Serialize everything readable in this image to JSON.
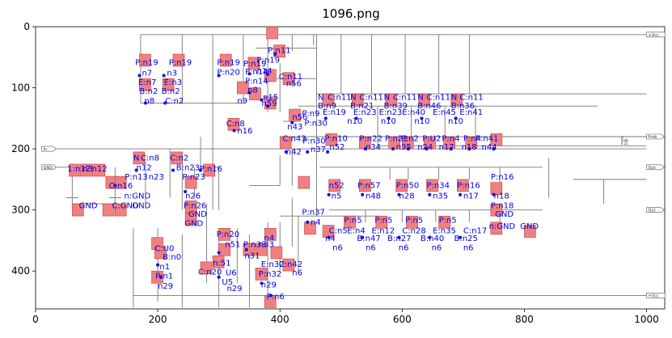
{
  "figure": {
    "title": "1096.png",
    "x_ticks": [
      "0",
      "200",
      "400",
      "600",
      "800",
      "1000"
    ],
    "y_ticks": [
      "0",
      "100",
      "200",
      "300",
      "400"
    ]
  },
  "ports": {
    "vcc": "+Vcc",
    "vcc2": "+Vcc",
    "in": "In",
    "gnd": "GND",
    "probe": "Prob",
    "out": "Out",
    "out2": "Out",
    "vee": "-Vee",
    "sub_title": "LI",
    "sub_l1": "Subt",
    "sub_l2": "0.22"
  },
  "labels": [
    {
      "t": "P:n19",
      "x": 163,
      "y": 63
    },
    {
      "t": "P:n19",
      "x": 218,
      "y": 63
    },
    {
      "t": "P:n19",
      "x": 297,
      "y": 63
    },
    {
      "t": "P:n19",
      "x": 340,
      "y": 65
    },
    {
      "t": "P:n11",
      "x": 380,
      "y": 43
    },
    {
      "t": "P:n19",
      "x": 362,
      "y": 59
    },
    {
      "t": "n7",
      "x": 174,
      "y": 80
    },
    {
      "t": "n3",
      "x": 215,
      "y": 80
    },
    {
      "t": "P:n20",
      "x": 297,
      "y": 79
    },
    {
      "t": "P:n14",
      "x": 343,
      "y": 78
    },
    {
      "t": "n14",
      "x": 362,
      "y": 77
    },
    {
      "t": "E:n7",
      "x": 168,
      "y": 95
    },
    {
      "t": "E:n3",
      "x": 210,
      "y": 95
    },
    {
      "t": "P:n14",
      "x": 343,
      "y": 93
    },
    {
      "t": "C:n11",
      "x": 398,
      "y": 86
    },
    {
      "t": "n56",
      "x": 410,
      "y": 97
    },
    {
      "t": "B:n2",
      "x": 170,
      "y": 110
    },
    {
      "t": "B:n2",
      "x": 206,
      "y": 110
    },
    {
      "t": "n8",
      "x": 347,
      "y": 108
    },
    {
      "t": "n15",
      "x": 372,
      "y": 120
    },
    {
      "t": "n8",
      "x": 178,
      "y": 126
    },
    {
      "t": "C:n2",
      "x": 212,
      "y": 126
    },
    {
      "t": "n9",
      "x": 330,
      "y": 126
    },
    {
      "t": "N",
      "x": 462,
      "y": 120
    },
    {
      "t": "C:n11",
      "x": 478,
      "y": 120
    },
    {
      "t": "N",
      "x": 515,
      "y": 120
    },
    {
      "t": "C:n11",
      "x": 530,
      "y": 120
    },
    {
      "t": "N",
      "x": 570,
      "y": 120
    },
    {
      "t": "C:n11",
      "x": 585,
      "y": 120
    },
    {
      "t": "N",
      "x": 625,
      "y": 120
    },
    {
      "t": "C:n11",
      "x": 640,
      "y": 120
    },
    {
      "t": "N",
      "x": 680,
      "y": 120
    },
    {
      "t": "C:n11",
      "x": 694,
      "y": 120
    },
    {
      "t": "B:n9",
      "x": 462,
      "y": 134
    },
    {
      "t": "B:n21",
      "x": 515,
      "y": 134
    },
    {
      "t": "B:n39",
      "x": 570,
      "y": 134
    },
    {
      "t": "B:n46",
      "x": 625,
      "y": 134
    },
    {
      "t": "B:n36",
      "x": 680,
      "y": 134
    },
    {
      "t": "P:n9",
      "x": 436,
      "y": 146
    },
    {
      "t": "E:n19",
      "x": 470,
      "y": 144
    },
    {
      "t": "E:n23",
      "x": 520,
      "y": 144
    },
    {
      "t": "E:n23",
      "x": 562,
      "y": 144
    },
    {
      "t": "E:n40",
      "x": 600,
      "y": 144
    },
    {
      "t": "E:n45",
      "x": 650,
      "y": 144
    },
    {
      "t": "E:n41",
      "x": 694,
      "y": 144
    },
    {
      "t": "n59",
      "x": 370,
      "y": 130
    },
    {
      "t": "n56",
      "x": 420,
      "y": 152
    },
    {
      "t": "P:n30",
      "x": 440,
      "y": 162
    },
    {
      "t": "n43",
      "x": 412,
      "y": 168
    },
    {
      "t": "n10",
      "x": 510,
      "y": 159
    },
    {
      "t": "n10",
      "x": 565,
      "y": 159
    },
    {
      "t": "n10",
      "x": 620,
      "y": 159
    },
    {
      "t": "n10",
      "x": 675,
      "y": 159
    },
    {
      "t": "C:n8",
      "x": 312,
      "y": 163
    },
    {
      "t": "n16",
      "x": 330,
      "y": 175
    },
    {
      "t": "C:n43",
      "x": 404,
      "y": 187
    },
    {
      "t": "P:n10",
      "x": 473,
      "y": 187
    },
    {
      "t": "P:n30",
      "x": 437,
      "y": 191
    },
    {
      "t": "n42",
      "x": 410,
      "y": 209
    },
    {
      "t": "n37",
      "x": 450,
      "y": 205
    },
    {
      "t": "n52",
      "x": 481,
      "y": 201
    },
    {
      "t": "P:n22",
      "x": 530,
      "y": 187
    },
    {
      "t": "P:n22",
      "x": 572,
      "y": 187
    },
    {
      "t": "P:n2",
      "x": 598,
      "y": 187
    },
    {
      "t": "P:U2",
      "x": 633,
      "y": 187
    },
    {
      "t": "P:n4",
      "x": 665,
      "y": 187
    },
    {
      "t": "P:n4",
      "x": 700,
      "y": 187
    },
    {
      "t": "P:n41",
      "x": 720,
      "y": 187
    },
    {
      "t": "n34",
      "x": 540,
      "y": 201
    },
    {
      "t": "n35",
      "x": 590,
      "y": 201
    },
    {
      "t": "n24",
      "x": 625,
      "y": 201
    },
    {
      "t": "n17",
      "x": 660,
      "y": 201
    },
    {
      "t": "n18",
      "x": 697,
      "y": 201
    },
    {
      "t": "n44",
      "x": 730,
      "y": 201
    },
    {
      "t": "N",
      "x": 160,
      "y": 219
    },
    {
      "t": "C:n8",
      "x": 172,
      "y": 219
    },
    {
      "t": "C:n2",
      "x": 220,
      "y": 219
    },
    {
      "t": "1:n12",
      "x": 52,
      "y": 237
    },
    {
      "t": "n3",
      "x": 77,
      "y": 237
    },
    {
      "t": "n12",
      "x": 92,
      "y": 237
    },
    {
      "t": "n12",
      "x": 165,
      "y": 235
    },
    {
      "t": "B:n23",
      "x": 230,
      "y": 235
    },
    {
      "t": "P:n16",
      "x": 268,
      "y": 237
    },
    {
      "t": "P:n13",
      "x": 146,
      "y": 250
    },
    {
      "t": "n23",
      "x": 185,
      "y": 250
    },
    {
      "t": "P:n23",
      "x": 240,
      "y": 250
    },
    {
      "t": "P:n16",
      "x": 745,
      "y": 250
    },
    {
      "t": "C:n16",
      "x": 120,
      "y": 265
    },
    {
      "t": "n52",
      "x": 480,
      "y": 264
    },
    {
      "t": "P:n57",
      "x": 527,
      "y": 264
    },
    {
      "t": "P:n50",
      "x": 590,
      "y": 264
    },
    {
      "t": "P:n34",
      "x": 640,
      "y": 264
    },
    {
      "t": "P:n16",
      "x": 690,
      "y": 264
    },
    {
      "t": "n26",
      "x": 245,
      "y": 281
    },
    {
      "t": "n:GND",
      "x": 145,
      "y": 281
    },
    {
      "t": "n5",
      "x": 484,
      "y": 281
    },
    {
      "t": "n48",
      "x": 540,
      "y": 281
    },
    {
      "t": "n28",
      "x": 595,
      "y": 281
    },
    {
      "t": "n35",
      "x": 650,
      "y": 281
    },
    {
      "t": "n17",
      "x": 700,
      "y": 281
    },
    {
      "t": "n18",
      "x": 750,
      "y": 281
    },
    {
      "t": "GND",
      "x": 71,
      "y": 297
    },
    {
      "t": "C:GND",
      "x": 125,
      "y": 297
    },
    {
      "t": "GND",
      "x": 158,
      "y": 297
    },
    {
      "t": "P:n26",
      "x": 242,
      "y": 297
    },
    {
      "t": "P:n18",
      "x": 745,
      "y": 297
    },
    {
      "t": "P:n37",
      "x": 436,
      "y": 308
    },
    {
      "t": "GND",
      "x": 250,
      "y": 311
    },
    {
      "t": "GND",
      "x": 752,
      "y": 311
    },
    {
      "t": "P:n5",
      "x": 505,
      "y": 321
    },
    {
      "t": "P:n5",
      "x": 555,
      "y": 321
    },
    {
      "t": "P:n5",
      "x": 605,
      "y": 321
    },
    {
      "t": "P:n5",
      "x": 660,
      "y": 321
    },
    {
      "t": "n4",
      "x": 450,
      "y": 324
    },
    {
      "t": "GND",
      "x": 244,
      "y": 326
    },
    {
      "t": "C:n5",
      "x": 480,
      "y": 338
    },
    {
      "t": "E:n4",
      "x": 510,
      "y": 338
    },
    {
      "t": "E:n12",
      "x": 550,
      "y": 338
    },
    {
      "t": "C:n28",
      "x": 600,
      "y": 338
    },
    {
      "t": "E:n35",
      "x": 650,
      "y": 338
    },
    {
      "t": "C:n17",
      "x": 700,
      "y": 338
    },
    {
      "t": "n:GND",
      "x": 742,
      "y": 331
    },
    {
      "t": "GND",
      "x": 793,
      "y": 331
    },
    {
      "t": "P:n20",
      "x": 296,
      "y": 344
    },
    {
      "t": "n4",
      "x": 474,
      "y": 351
    },
    {
      "t": "B:n47",
      "x": 526,
      "y": 351
    },
    {
      "t": "B:n27",
      "x": 576,
      "y": 351
    },
    {
      "t": "B:n40",
      "x": 630,
      "y": 351
    },
    {
      "t": "B:n25",
      "x": 685,
      "y": 351
    },
    {
      "t": "n4",
      "x": 374,
      "y": 350
    },
    {
      "t": "n6",
      "x": 486,
      "y": 366
    },
    {
      "t": "n6",
      "x": 540,
      "y": 366
    },
    {
      "t": "n6",
      "x": 594,
      "y": 366
    },
    {
      "t": "n6",
      "x": 648,
      "y": 366
    },
    {
      "t": "n6",
      "x": 700,
      "y": 366
    },
    {
      "t": "C:U0",
      "x": 195,
      "y": 367
    },
    {
      "t": "n51",
      "x": 310,
      "y": 361
    },
    {
      "t": "P:n33",
      "x": 340,
      "y": 361
    },
    {
      "t": "n33",
      "x": 365,
      "y": 361
    },
    {
      "t": "B:n0",
      "x": 208,
      "y": 381
    },
    {
      "t": "n31",
      "x": 342,
      "y": 379
    },
    {
      "t": "n1",
      "x": 203,
      "y": 397
    },
    {
      "t": "n:51",
      "x": 290,
      "y": 391
    },
    {
      "t": "E:n32",
      "x": 369,
      "y": 393
    },
    {
      "t": "C:n42",
      "x": 398,
      "y": 393
    },
    {
      "t": "n6",
      "x": 420,
      "y": 407
    },
    {
      "t": "P:n1",
      "x": 196,
      "y": 412
    },
    {
      "t": "C:n20",
      "x": 266,
      "y": 406
    },
    {
      "t": "U6",
      "x": 311,
      "y": 407
    },
    {
      "t": "P:n32",
      "x": 365,
      "y": 409
    },
    {
      "t": "U5",
      "x": 305,
      "y": 422
    },
    {
      "t": "n29",
      "x": 200,
      "y": 429
    },
    {
      "t": "n29",
      "x": 369,
      "y": 427
    },
    {
      "t": "n29",
      "x": 313,
      "y": 433
    },
    {
      "t": "P:n6",
      "x": 378,
      "y": 446
    }
  ]
}
